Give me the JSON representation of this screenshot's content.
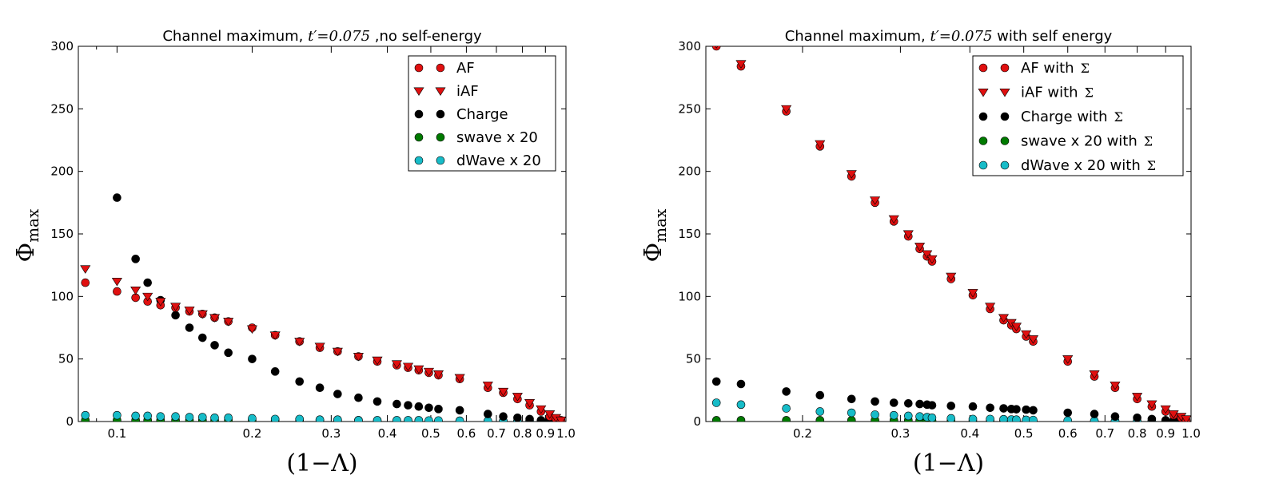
{
  "chart_data": [
    {
      "type": "scatter",
      "title_prefix": "Channel maximum, ",
      "title_math": "t′=0.075",
      "title_suffix": " ,no self-energy",
      "xlabel": "(1−Λ)",
      "ylabel": "Φ",
      "ylabel_sub": "max",
      "xscale": "log",
      "xlim": [
        0.082,
        1.0
      ],
      "ylim": [
        0,
        300
      ],
      "xticks": [
        0.1,
        0.2,
        0.3,
        0.4,
        0.5,
        0.6,
        0.7,
        0.8,
        0.9,
        1.0
      ],
      "xtick_labels": [
        "0.1",
        "0.2",
        "0.3",
        "0.4",
        "0.5",
        "0.6",
        "0.7",
        "0.8",
        "0.9",
        "1.0"
      ],
      "yticks": [
        0,
        50,
        100,
        150,
        200,
        250,
        300
      ],
      "ytick_labels": [
        "0",
        "50",
        "100",
        "150",
        "200",
        "250",
        "300"
      ],
      "legend_position": "top-right",
      "series": [
        {
          "name": "AF",
          "legend_sym": "",
          "marker": "circle",
          "color": "#e01010",
          "x": [
            0.085,
            0.1,
            0.11,
            0.117,
            0.125,
            0.135,
            0.145,
            0.155,
            0.165,
            0.177,
            0.2,
            0.225,
            0.255,
            0.283,
            0.31,
            0.345,
            0.38,
            0.42,
            0.445,
            0.47,
            0.495,
            0.52,
            0.58,
            0.67,
            0.725,
            0.78,
            0.83,
            0.88,
            0.92,
            0.95,
            0.975
          ],
          "y": [
            111,
            104,
            99,
            96,
            93,
            91,
            88,
            86,
            83,
            80,
            75,
            69,
            64,
            59,
            56,
            52,
            48,
            45,
            43,
            41,
            39,
            37,
            34,
            27,
            23,
            18,
            13,
            8,
            4,
            2,
            1
          ]
        },
        {
          "name": "iAF",
          "legend_sym": "",
          "marker": "triangle-down",
          "color": "#e01010",
          "x": [
            0.085,
            0.1,
            0.11,
            0.117,
            0.125,
            0.135,
            0.145,
            0.155,
            0.165,
            0.177,
            0.2,
            0.225,
            0.255,
            0.283,
            0.31,
            0.345,
            0.38,
            0.42,
            0.445,
            0.47,
            0.495,
            0.52,
            0.58,
            0.67,
            0.725,
            0.78,
            0.83,
            0.88,
            0.92,
            0.95,
            0.975
          ],
          "y": [
            122,
            112,
            105,
            100,
            96,
            92,
            89,
            86,
            83,
            80,
            74,
            69,
            64,
            60,
            56,
            52,
            49,
            46,
            44,
            42,
            40,
            38,
            35,
            29,
            24,
            20,
            15,
            10,
            6,
            3,
            1
          ]
        },
        {
          "name": "Charge",
          "legend_sym": "",
          "marker": "circle",
          "color": "#000000",
          "x": [
            0.1,
            0.11,
            0.117,
            0.125,
            0.135,
            0.145,
            0.155,
            0.165,
            0.177,
            0.2,
            0.225,
            0.255,
            0.283,
            0.31,
            0.345,
            0.38,
            0.42,
            0.445,
            0.47,
            0.495,
            0.52,
            0.58,
            0.67,
            0.725,
            0.78,
            0.83,
            0.88,
            0.92,
            0.95,
            0.975
          ],
          "y": [
            179,
            130,
            111,
            97,
            85,
            75,
            67,
            61,
            55,
            50,
            40,
            32,
            27,
            22,
            19,
            16,
            14,
            13,
            12,
            11,
            10,
            9,
            6,
            4,
            3,
            2,
            1,
            1,
            0.5,
            0.2
          ]
        },
        {
          "name": "swave x 20",
          "legend_sym": "",
          "marker": "circle",
          "color": "#007a00",
          "x": [
            0.085,
            0.1,
            0.11,
            0.117,
            0.125,
            0.135,
            0.145,
            0.155,
            0.165,
            0.177,
            0.2,
            0.225,
            0.255,
            0.283,
            0.31,
            0.345,
            0.38,
            0.42,
            0.445,
            0.47,
            0.495,
            0.52,
            0.58,
            0.67,
            0.725,
            0.78,
            0.83,
            0.88,
            0.92,
            0.95,
            0.975
          ],
          "y": [
            1,
            1,
            1,
            1,
            1,
            1,
            1,
            1,
            1,
            1,
            1,
            1,
            1,
            1,
            1,
            1,
            0.5,
            0.5,
            0.5,
            0.5,
            0.5,
            0.5,
            0.5,
            0.3,
            0.3,
            0.3,
            0.2,
            0.2,
            0.1,
            0.1,
            0.1
          ]
        },
        {
          "name": "dWave x 20",
          "legend_sym": "",
          "marker": "circle",
          "color": "#17bcc8",
          "x": [
            0.085,
            0.1,
            0.11,
            0.117,
            0.125,
            0.135,
            0.145,
            0.155,
            0.165,
            0.177,
            0.2,
            0.225,
            0.255,
            0.283,
            0.31,
            0.345,
            0.38,
            0.42,
            0.445,
            0.47,
            0.495,
            0.52,
            0.58,
            0.67,
            0.725,
            0.78,
            0.83,
            0.88,
            0.92,
            0.95,
            0.975
          ],
          "y": [
            5,
            5,
            4.5,
            4.5,
            4,
            4,
            3.5,
            3.5,
            3,
            3,
            2.5,
            2,
            2,
            1.5,
            1.5,
            1,
            1,
            1,
            1,
            1,
            0.8,
            0.8,
            0.6,
            0.5,
            0.4,
            0.3,
            0.3,
            0.2,
            0.2,
            0.1,
            0.1
          ]
        }
      ]
    },
    {
      "type": "scatter",
      "title_prefix": "Channel maximum, ",
      "title_math": "t′=0.075",
      "title_suffix": " with self energy",
      "xlabel": "(1−Λ)",
      "ylabel": "Φ",
      "ylabel_sub": "max",
      "xscale": "log",
      "xlim": [
        0.134,
        1.0
      ],
      "ylim": [
        0,
        300
      ],
      "xticks": [
        0.2,
        0.3,
        0.4,
        0.5,
        0.6,
        0.7,
        0.8,
        0.9,
        1.0
      ],
      "xtick_labels": [
        "0.2",
        "0.3",
        "0.4",
        "0.5",
        "0.6",
        "0.7",
        "0.8",
        "0.9",
        "1.0"
      ],
      "yticks": [
        0,
        50,
        100,
        150,
        200,
        250,
        300
      ],
      "ytick_labels": [
        "0",
        "50",
        "100",
        "150",
        "200",
        "250",
        "300"
      ],
      "legend_position": "top-right",
      "series": [
        {
          "name": "AF with",
          "legend_sym": "Σ",
          "marker": "circle",
          "color": "#e01010",
          "x": [
            0.14,
            0.155,
            0.187,
            0.215,
            0.245,
            0.27,
            0.292,
            0.31,
            0.325,
            0.335,
            0.342,
            0.37,
            0.405,
            0.435,
            0.46,
            0.475,
            0.485,
            0.505,
            0.52,
            0.6,
            0.67,
            0.73,
            0.8,
            0.85,
            0.9,
            0.93,
            0.96,
            0.98
          ],
          "y": [
            300,
            284,
            248,
            220,
            196,
            175,
            160,
            148,
            138,
            132,
            128,
            114,
            101,
            90,
            81,
            77,
            74,
            68,
            64,
            48,
            36,
            27,
            18,
            12,
            8,
            5,
            3,
            1
          ]
        },
        {
          "name": "iAF with",
          "legend_sym": "Σ",
          "marker": "triangle-down",
          "color": "#e01010",
          "x": [
            0.14,
            0.155,
            0.187,
            0.215,
            0.245,
            0.27,
            0.292,
            0.31,
            0.325,
            0.335,
            0.342,
            0.37,
            0.405,
            0.435,
            0.46,
            0.475,
            0.485,
            0.505,
            0.52,
            0.6,
            0.67,
            0.73,
            0.8,
            0.85,
            0.9,
            0.93,
            0.96,
            0.98
          ],
          "y": [
            302,
            286,
            250,
            222,
            198,
            177,
            162,
            150,
            140,
            134,
            130,
            116,
            103,
            92,
            83,
            79,
            76,
            70,
            66,
            50,
            38,
            29,
            20,
            14,
            10,
            6,
            4,
            2
          ]
        },
        {
          "name": "Charge with",
          "legend_sym": "Σ",
          "marker": "circle",
          "color": "#000000",
          "x": [
            0.14,
            0.155,
            0.187,
            0.215,
            0.245,
            0.27,
            0.292,
            0.31,
            0.325,
            0.335,
            0.342,
            0.37,
            0.405,
            0.435,
            0.46,
            0.475,
            0.485,
            0.505,
            0.52,
            0.6,
            0.67,
            0.73,
            0.8,
            0.85,
            0.9,
            0.93,
            0.96,
            0.98
          ],
          "y": [
            32,
            30,
            24,
            21,
            18,
            16,
            15,
            14.5,
            14,
            13.5,
            13,
            12.5,
            12,
            11,
            10.5,
            10,
            9.8,
            9.5,
            9,
            7,
            6,
            4,
            3,
            2,
            1,
            0.8,
            0.5,
            0.2
          ]
        },
        {
          "name": "swave x 20 with",
          "legend_sym": "Σ",
          "marker": "circle",
          "color": "#007a00",
          "x": [
            0.14,
            0.155,
            0.187,
            0.215,
            0.245,
            0.27,
            0.292,
            0.31,
            0.325,
            0.335,
            0.342,
            0.37,
            0.405,
            0.435,
            0.46,
            0.475,
            0.485,
            0.505,
            0.52,
            0.6,
            0.67,
            0.73,
            0.8,
            0.85,
            0.9,
            0.93,
            0.96,
            0.98
          ],
          "y": [
            1,
            1,
            1,
            1,
            1,
            1,
            1,
            1,
            0.8,
            0.8,
            0.8,
            0.8,
            0.6,
            0.6,
            0.6,
            0.5,
            0.5,
            0.5,
            0.5,
            0.4,
            0.3,
            0.3,
            0.2,
            0.2,
            0.1,
            0.1,
            0.1,
            0.1
          ]
        },
        {
          "name": "dWave x 20 with",
          "legend_sym": "Σ",
          "marker": "circle",
          "color": "#17bcc8",
          "x": [
            0.14,
            0.155,
            0.187,
            0.215,
            0.245,
            0.27,
            0.292,
            0.31,
            0.325,
            0.335,
            0.342,
            0.37,
            0.405,
            0.435,
            0.46,
            0.475,
            0.485,
            0.505,
            0.52,
            0.6,
            0.67,
            0.73,
            0.8,
            0.85,
            0.9,
            0.93,
            0.96,
            0.98
          ],
          "y": [
            15,
            13.5,
            10.5,
            8,
            7,
            5.5,
            5,
            4.5,
            4,
            3.5,
            3,
            2.5,
            2,
            2,
            1.8,
            1.6,
            1.5,
            1.3,
            1.2,
            0.8,
            0.5,
            0.4,
            0.3,
            0.2,
            0.2,
            0.1,
            0.1,
            0.1
          ]
        }
      ]
    }
  ]
}
